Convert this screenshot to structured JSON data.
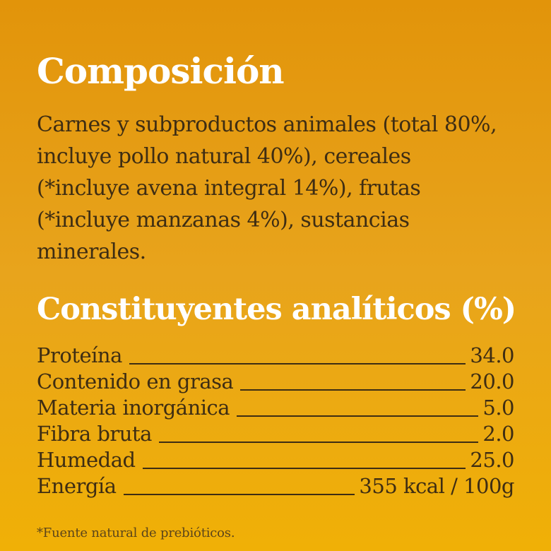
{
  "panel": {
    "background_top_color": "#e2940a",
    "background_bottom_color": "#f0b006",
    "heading_color": "#ffffff",
    "text_color": "#3e2d13"
  },
  "composition": {
    "title": "Composición",
    "body": "Carnes y subproductos animales (total 80%, incluye pollo natural 40%), cereales (*incluye avena integral 14%), frutas (*incluye manzanas 4%), sustancias minerales."
  },
  "constituents": {
    "title": "Constituyentes analíticos (%)",
    "rows": [
      {
        "label": "Proteína",
        "value": "34.0"
      },
      {
        "label": "Contenido en grasa",
        "value": "20.0"
      },
      {
        "label": "Materia inorgánica",
        "value": "5.0"
      },
      {
        "label": "Fibra bruta",
        "value": "2.0"
      },
      {
        "label": "Humedad",
        "value": "25.0"
      },
      {
        "label": "Energía",
        "value": "355 kcal / 100g"
      }
    ]
  },
  "footnote": "*Fuente natural de prebióticos."
}
